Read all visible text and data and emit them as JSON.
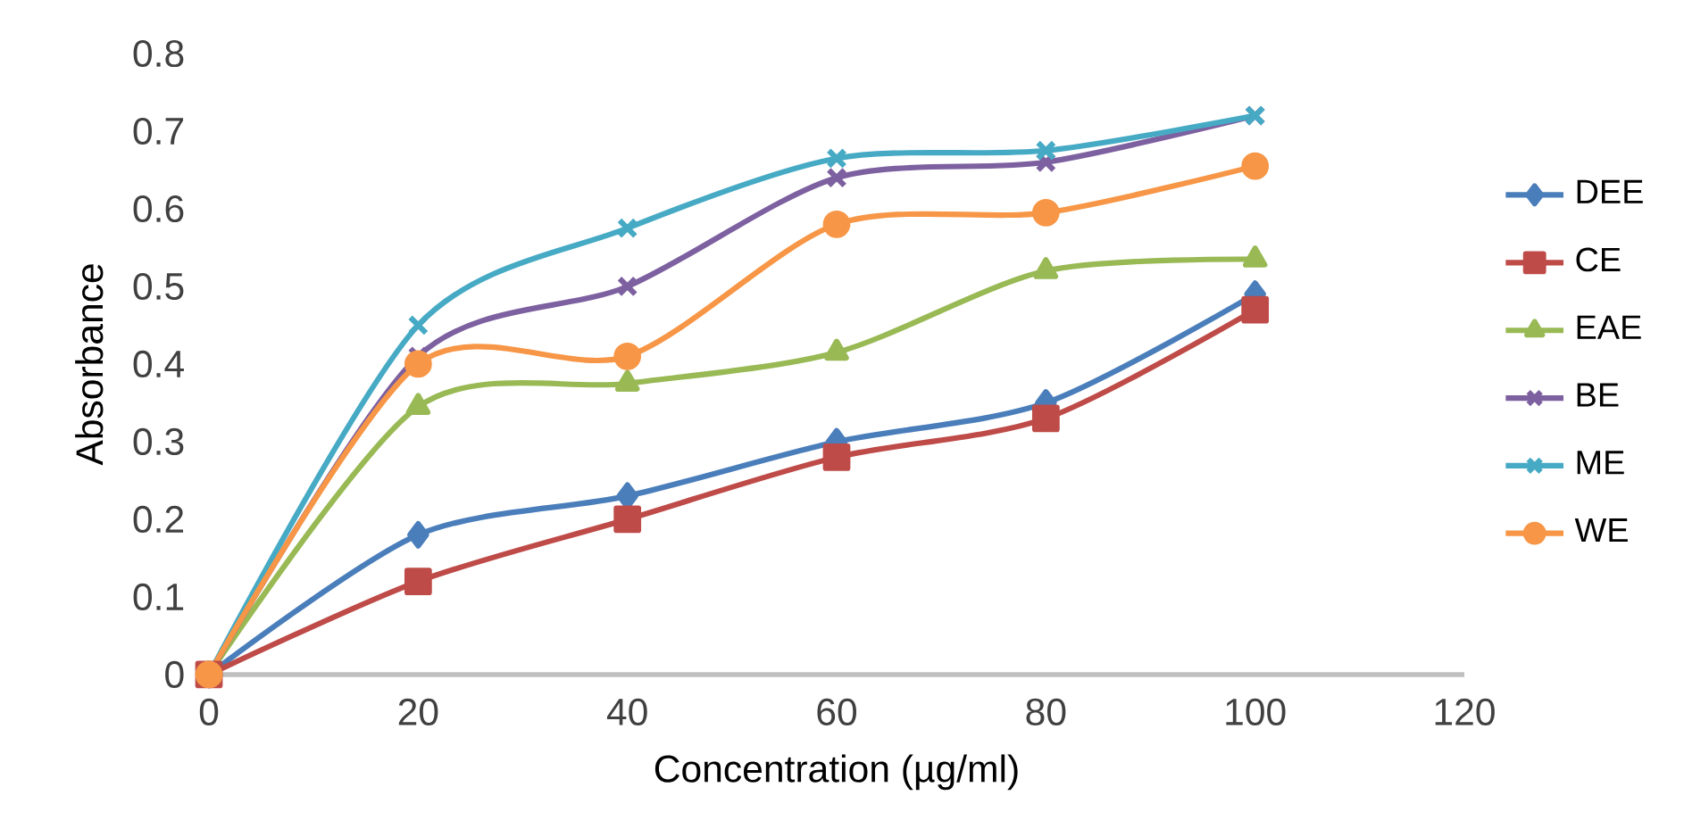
{
  "chart_data": {
    "type": "line",
    "xlabel": "Concentration (µg/ml)",
    "ylabel": "Absorbance",
    "x": [
      0,
      20,
      40,
      60,
      80,
      100
    ],
    "xlim": [
      0,
      120
    ],
    "xticks": [
      0,
      20,
      40,
      60,
      80,
      100,
      120
    ],
    "ylim": [
      0,
      0.8
    ],
    "yticks": [
      0,
      0.1,
      0.2,
      0.3,
      0.4,
      0.5,
      0.6,
      0.7,
      0.8
    ],
    "legend": "right",
    "grid": false,
    "series": [
      {
        "name": "DEE",
        "color": "#4a7ebb",
        "marker": "diamond",
        "values": [
          0,
          0.18,
          0.23,
          0.3,
          0.35,
          0.49
        ]
      },
      {
        "name": "CE",
        "color": "#be4b48",
        "marker": "square",
        "values": [
          0,
          0.12,
          0.2,
          0.28,
          0.33,
          0.47
        ]
      },
      {
        "name": "EAE",
        "color": "#98b954",
        "marker": "triangle",
        "values": [
          0,
          0.345,
          0.375,
          0.415,
          0.52,
          0.535
        ]
      },
      {
        "name": "BE",
        "color": "#7d60a0",
        "marker": "cross",
        "values": [
          0,
          0.41,
          0.5,
          0.64,
          0.66,
          0.72
        ]
      },
      {
        "name": "ME",
        "color": "#46aac5",
        "marker": "cross",
        "values": [
          0,
          0.45,
          0.575,
          0.665,
          0.675,
          0.72
        ]
      },
      {
        "name": "WE",
        "color": "#f79646",
        "marker": "circle",
        "values": [
          0,
          0.4,
          0.41,
          0.58,
          0.595,
          0.655
        ]
      }
    ]
  }
}
